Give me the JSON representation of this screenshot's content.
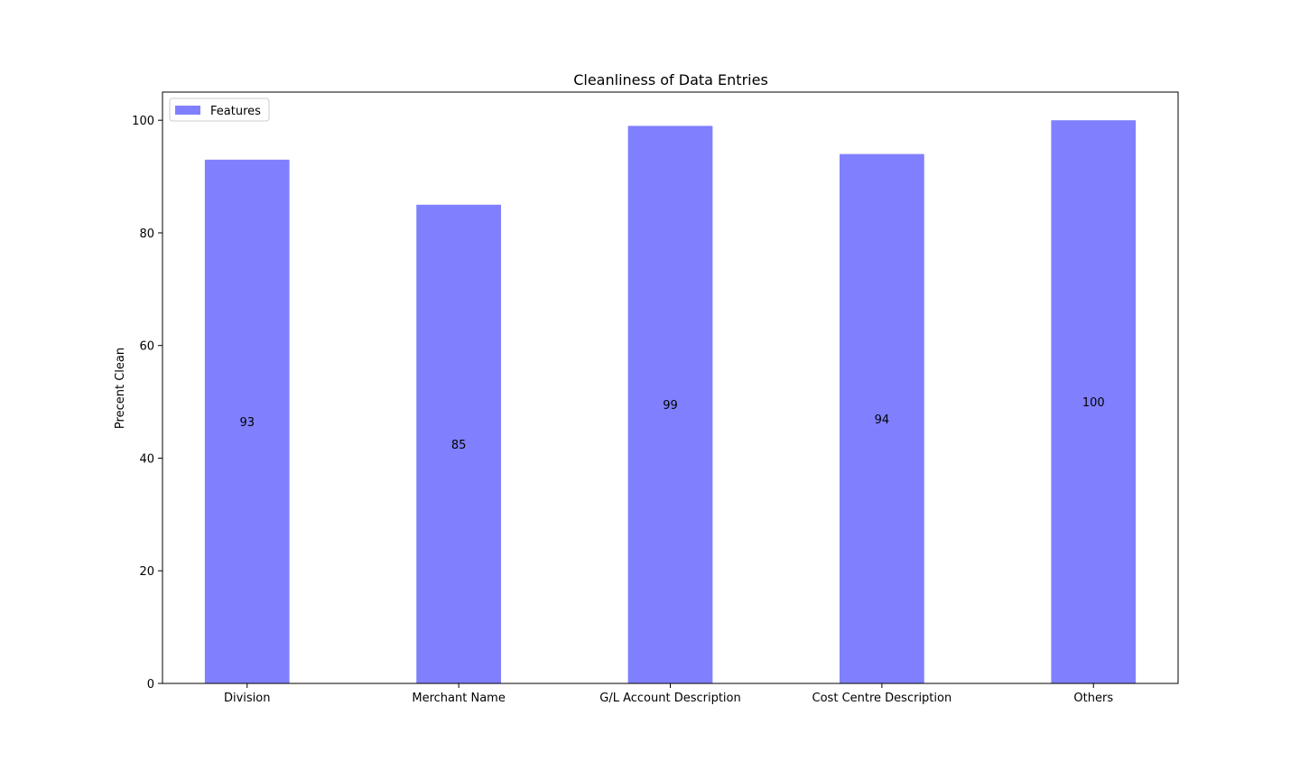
{
  "chart_data": {
    "type": "bar",
    "title": "Cleanliness of Data Entries",
    "xlabel": "",
    "ylabel": "Precent Clean",
    "categories": [
      "Division",
      "Merchant Name",
      "G/L Account Description",
      "Cost Centre Description",
      "Others"
    ],
    "series": [
      {
        "name": "Features",
        "values": [
          93,
          85,
          99,
          94,
          100
        ],
        "color": "#8080ff"
      }
    ],
    "data_labels": [
      "93",
      "85",
      "99",
      "94",
      "100"
    ],
    "ylim": [
      0,
      105
    ],
    "yticks": [
      0,
      20,
      40,
      60,
      80,
      100
    ],
    "grid": false,
    "legend_position": "top-left"
  }
}
